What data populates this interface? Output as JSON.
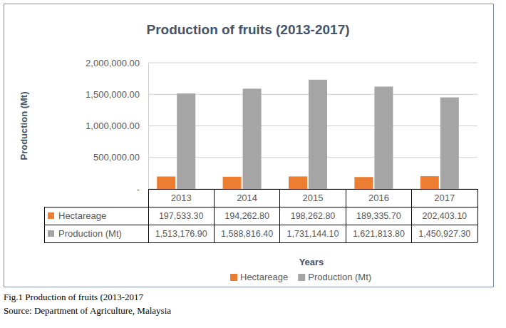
{
  "chart_data": {
    "type": "bar",
    "title": "Production of fruits (2013-2017)",
    "x_label": "Years",
    "y_label": "Production (Mt)",
    "categories": [
      "2013",
      "2014",
      "2015",
      "2016",
      "2017"
    ],
    "series": [
      {
        "name": "Hectareage",
        "color": "#ed7d31",
        "values": [
          197533.3,
          194262.8,
          198262.8,
          189335.7,
          202403.1
        ],
        "value_labels": [
          "197,533.30",
          "194,262.80",
          "198,262.80",
          "189,335.70",
          "202,403.10"
        ]
      },
      {
        "name": "Production (Mt)",
        "color": "#a5a5a5",
        "values": [
          1513176.9,
          1588816.4,
          1731144.1,
          1621813.8,
          1450927.3
        ],
        "value_labels": [
          "1,513,176.90",
          "1,588,816.40",
          "1,731,144.10",
          "1,621,813.80",
          "1,450,927.30"
        ]
      }
    ],
    "ylim": [
      0,
      2000000
    ],
    "yticks": [
      {
        "value": 0,
        "label": "-"
      },
      {
        "value": 500000,
        "label": "500,000.00"
      },
      {
        "value": 1000000,
        "label": "1,000,000.00"
      },
      {
        "value": 1500000,
        "label": "1,500,000.00"
      },
      {
        "value": 2000000,
        "label": "2,000,000.00"
      }
    ],
    "grid": true,
    "legend": "bottom",
    "caption": "Fig.1 Production of fruits (2013-2017",
    "source": "Source: Department of Agriculture, Malaysia"
  }
}
